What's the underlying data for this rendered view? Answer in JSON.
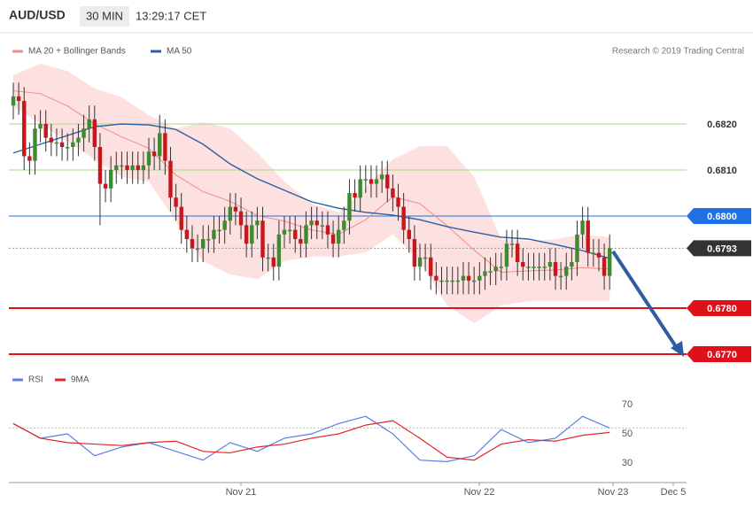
{
  "header": {
    "symbol": "AUD/USD",
    "interval": "30 MIN",
    "time": "13:29:17 CET"
  },
  "chart_data": [
    {
      "type": "candlestick",
      "copyright": "Research © 2019 Trading Central",
      "ylim": [
        0.6767,
        0.6834
      ],
      "up_color": "#3d8b2f",
      "down_color": "#c8161d",
      "open": [
        0.6824,
        0.6826,
        0.6825,
        0.6813,
        0.6812,
        0.6819,
        0.682,
        0.6817,
        0.6816,
        0.6816,
        0.6815,
        0.6815,
        0.6816,
        0.6817,
        0.6819,
        0.6821,
        0.6815,
        0.6807,
        0.6806,
        0.681,
        0.6811,
        0.6811,
        0.681,
        0.6811,
        0.681,
        0.6811,
        0.6814,
        0.6813,
        0.6818,
        0.6812,
        0.6804,
        0.6802,
        0.6797,
        0.6795,
        0.6793,
        0.6793,
        0.6795,
        0.6795,
        0.6797,
        0.6797,
        0.6799,
        0.6802,
        0.6801,
        0.6798,
        0.6794,
        0.6798,
        0.6799,
        0.6791,
        0.6791,
        0.6789,
        0.6796,
        0.6797,
        0.6797,
        0.6795,
        0.6794,
        0.6798,
        0.6799,
        0.6798,
        0.6798,
        0.6796,
        0.6794,
        0.6797,
        0.6799,
        0.6805,
        0.6804,
        0.6808,
        0.6808,
        0.6807,
        0.6808,
        0.6809,
        0.6806,
        0.6804,
        0.6802,
        0.6797,
        0.6795,
        0.6789,
        0.6791,
        0.6791,
        0.6787,
        0.6786,
        0.6786,
        0.6786,
        0.6786,
        0.6786,
        0.6787,
        0.6786,
        0.6786,
        0.6787,
        0.6788,
        0.6788,
        0.6789,
        0.6789,
        0.6794,
        0.6794,
        0.679,
        0.6789,
        0.6789,
        0.6789,
        0.6789,
        0.6789,
        0.679,
        0.6787,
        0.6787,
        0.6789,
        0.679,
        0.6796,
        0.6799,
        0.6792,
        0.6792,
        0.6791,
        0.6787
      ],
      "high": [
        0.6829,
        0.6829,
        0.6828,
        0.6816,
        0.6822,
        0.6823,
        0.6823,
        0.682,
        0.6819,
        0.6819,
        0.6818,
        0.6819,
        0.682,
        0.6822,
        0.6824,
        0.6824,
        0.6818,
        0.681,
        0.6813,
        0.6814,
        0.6814,
        0.6814,
        0.6814,
        0.6814,
        0.6814,
        0.6817,
        0.6817,
        0.6822,
        0.6821,
        0.6815,
        0.6807,
        0.6805,
        0.68,
        0.6798,
        0.6796,
        0.6798,
        0.6798,
        0.68,
        0.68,
        0.6802,
        0.6805,
        0.6805,
        0.6804,
        0.6801,
        0.6801,
        0.6802,
        0.6802,
        0.6794,
        0.6794,
        0.6799,
        0.68,
        0.68,
        0.68,
        0.6798,
        0.6801,
        0.6802,
        0.6802,
        0.6801,
        0.6801,
        0.6799,
        0.68,
        0.6802,
        0.6808,
        0.6808,
        0.6811,
        0.6811,
        0.6811,
        0.6811,
        0.6812,
        0.6812,
        0.6809,
        0.6807,
        0.6805,
        0.68,
        0.6798,
        0.6794,
        0.6794,
        0.6794,
        0.679,
        0.6789,
        0.6789,
        0.6789,
        0.6789,
        0.679,
        0.679,
        0.6789,
        0.679,
        0.6791,
        0.6791,
        0.6792,
        0.6792,
        0.6797,
        0.6797,
        0.6797,
        0.6793,
        0.6792,
        0.6792,
        0.6792,
        0.6792,
        0.6793,
        0.6793,
        0.679,
        0.6792,
        0.6793,
        0.6799,
        0.6802,
        0.6802,
        0.6795,
        0.6795,
        0.6794,
        0.6796
      ],
      "low": [
        0.6821,
        0.6822,
        0.681,
        0.6809,
        0.6809,
        0.6816,
        0.6814,
        0.6813,
        0.6813,
        0.6812,
        0.6812,
        0.6812,
        0.6813,
        0.6814,
        0.6816,
        0.6812,
        0.6798,
        0.6803,
        0.6803,
        0.6807,
        0.6808,
        0.6807,
        0.6807,
        0.6807,
        0.6807,
        0.6808,
        0.681,
        0.681,
        0.6809,
        0.6801,
        0.6799,
        0.6794,
        0.6792,
        0.679,
        0.679,
        0.679,
        0.6792,
        0.6792,
        0.6794,
        0.6794,
        0.6796,
        0.6798,
        0.6795,
        0.6791,
        0.6791,
        0.6795,
        0.6788,
        0.6788,
        0.6786,
        0.6786,
        0.6793,
        0.6794,
        0.6792,
        0.6791,
        0.6791,
        0.6795,
        0.6795,
        0.6795,
        0.6793,
        0.6791,
        0.6791,
        0.6794,
        0.6796,
        0.6801,
        0.6801,
        0.6805,
        0.6804,
        0.6804,
        0.6805,
        0.6803,
        0.6801,
        0.6799,
        0.6794,
        0.6792,
        0.6786,
        0.6786,
        0.6788,
        0.6784,
        0.6783,
        0.6783,
        0.6783,
        0.6783,
        0.6783,
        0.6783,
        0.6783,
        0.6783,
        0.6783,
        0.6784,
        0.6785,
        0.6785,
        0.6786,
        0.6786,
        0.6791,
        0.6787,
        0.6786,
        0.6786,
        0.6786,
        0.6786,
        0.6786,
        0.6786,
        0.6784,
        0.6784,
        0.6784,
        0.6786,
        0.6787,
        0.6793,
        0.6789,
        0.6789,
        0.6788,
        0.6784,
        0.6784
      ],
      "close": [
        0.6826,
        0.6825,
        0.6813,
        0.6812,
        0.6819,
        0.682,
        0.6817,
        0.6816,
        0.6816,
        0.6815,
        0.6815,
        0.6816,
        0.6817,
        0.6819,
        0.6821,
        0.6815,
        0.6807,
        0.6806,
        0.681,
        0.6811,
        0.6811,
        0.681,
        0.6811,
        0.681,
        0.6811,
        0.6814,
        0.6813,
        0.6818,
        0.6812,
        0.6804,
        0.6802,
        0.6797,
        0.6795,
        0.6793,
        0.6793,
        0.6795,
        0.6795,
        0.6797,
        0.6797,
        0.6799,
        0.6802,
        0.6801,
        0.6798,
        0.6794,
        0.6798,
        0.6799,
        0.6791,
        0.6791,
        0.6789,
        0.6796,
        0.6797,
        0.6797,
        0.6795,
        0.6794,
        0.6798,
        0.6799,
        0.6798,
        0.6798,
        0.6796,
        0.6794,
        0.6797,
        0.6799,
        0.6805,
        0.6804,
        0.6808,
        0.6808,
        0.6807,
        0.6808,
        0.6809,
        0.6806,
        0.6804,
        0.6802,
        0.6797,
        0.6795,
        0.6789,
        0.6791,
        0.6791,
        0.6787,
        0.6786,
        0.6786,
        0.6786,
        0.6786,
        0.6786,
        0.6787,
        0.6786,
        0.6786,
        0.6787,
        0.6788,
        0.6788,
        0.6789,
        0.6789,
        0.6794,
        0.6794,
        0.679,
        0.6789,
        0.6789,
        0.6789,
        0.6789,
        0.6789,
        0.679,
        0.6787,
        0.6787,
        0.6789,
        0.679,
        0.6796,
        0.6799,
        0.6792,
        0.6792,
        0.6791,
        0.6787,
        0.6793
      ],
      "series": [
        {
          "name": "MA 20 + Bollinger Bands",
          "color": "#f28b8b",
          "band_color": "#fde0e0",
          "x": [
            0,
            5,
            10,
            15,
            20,
            25,
            30,
            35,
            40,
            45,
            50,
            55,
            60,
            65,
            70,
            75,
            80,
            85,
            90,
            95,
            100,
            105,
            110
          ],
          "values": [
            0.68272,
            0.68266,
            0.68239,
            0.682,
            0.68172,
            0.68147,
            0.68089,
            0.68053,
            0.68032,
            0.68001,
            0.67989,
            0.6797,
            0.6796,
            0.67992,
            0.68042,
            0.68027,
            0.67979,
            0.67926,
            0.67878,
            0.67881,
            0.67883,
            0.67888,
            0.67885
          ],
          "upper": [
            0.68306,
            0.68331,
            0.68315,
            0.68277,
            0.68258,
            0.68219,
            0.6819,
            0.68204,
            0.6819,
            0.68138,
            0.68075,
            0.68027,
            0.68008,
            0.68062,
            0.68123,
            0.68152,
            0.68152,
            0.68085,
            0.6795,
            0.67946,
            0.6795,
            0.6796,
            0.67954
          ],
          "lower": [
            0.68238,
            0.682,
            0.68162,
            0.68123,
            0.68085,
            0.68075,
            0.67988,
            0.67902,
            0.67873,
            0.67863,
            0.67902,
            0.67912,
            0.67912,
            0.67921,
            0.6796,
            0.67902,
            0.67806,
            0.67767,
            0.67806,
            0.67815,
            0.67815,
            0.67815,
            0.67815
          ]
        },
        {
          "name": "MA 50",
          "color": "#2c5fa5",
          "x": [
            0,
            5,
            10,
            15,
            20,
            25,
            30,
            35,
            40,
            45,
            50,
            55,
            60,
            65,
            70,
            75,
            80,
            85,
            90,
            95,
            100,
            105,
            110
          ],
          "values": [
            0.68137,
            0.68156,
            0.68175,
            0.68194,
            0.682,
            0.68198,
            0.68188,
            0.68156,
            0.68113,
            0.68081,
            0.68056,
            0.68031,
            0.68017,
            0.68008,
            0.68002,
            0.67992,
            0.67977,
            0.67965,
            0.67954,
            0.6795,
            0.67938,
            0.67925,
            0.67908
          ]
        }
      ],
      "levels": [
        {
          "value": 0.682,
          "label": "0.6820",
          "color": "#a9d88e",
          "tag": false
        },
        {
          "value": 0.681,
          "label": "0.6810",
          "color": "#a9d88e",
          "tag": false
        },
        {
          "value": 0.68,
          "label": "0.6800",
          "color": "#1f6fe5",
          "tag": true
        },
        {
          "value": 0.6793,
          "label": "0.6793",
          "color": "#333333",
          "tag": true
        },
        {
          "value": 0.678,
          "label": "0.6780",
          "color": "#e0101b",
          "tag": true
        },
        {
          "value": 0.677,
          "label": "0.6770",
          "color": "#e0101b",
          "tag": true
        }
      ],
      "x_labels": [
        "Nov 21",
        "Nov 22",
        "Nov 23",
        "Dec 5"
      ]
    },
    {
      "type": "line",
      "ylim": [
        20,
        92
      ],
      "yticks": [
        30,
        50,
        70
      ],
      "series": [
        {
          "name": "RSI",
          "color": "#5b7fe0",
          "x": [
            0,
            5,
            10,
            15,
            20,
            25,
            30,
            35,
            40,
            45,
            50,
            55,
            60,
            65,
            70,
            75,
            80,
            85,
            90,
            95,
            100,
            105,
            110
          ],
          "values": [
            57,
            47,
            50,
            35,
            41,
            44,
            38,
            32,
            44,
            38,
            47,
            50,
            57,
            62,
            50,
            32,
            31,
            35,
            53,
            44,
            47,
            62,
            54
          ]
        },
        {
          "name": "9MA",
          "color": "#e3262b",
          "x": [
            0,
            5,
            10,
            15,
            20,
            25,
            30,
            35,
            40,
            45,
            50,
            55,
            60,
            65,
            70,
            75,
            80,
            85,
            90,
            95,
            100,
            105,
            110
          ],
          "values": [
            57,
            47,
            44,
            43,
            42,
            44,
            45,
            38,
            37,
            41,
            43,
            47,
            50,
            56,
            59,
            47,
            34,
            32,
            43,
            46,
            45,
            49,
            51
          ]
        }
      ]
    }
  ]
}
